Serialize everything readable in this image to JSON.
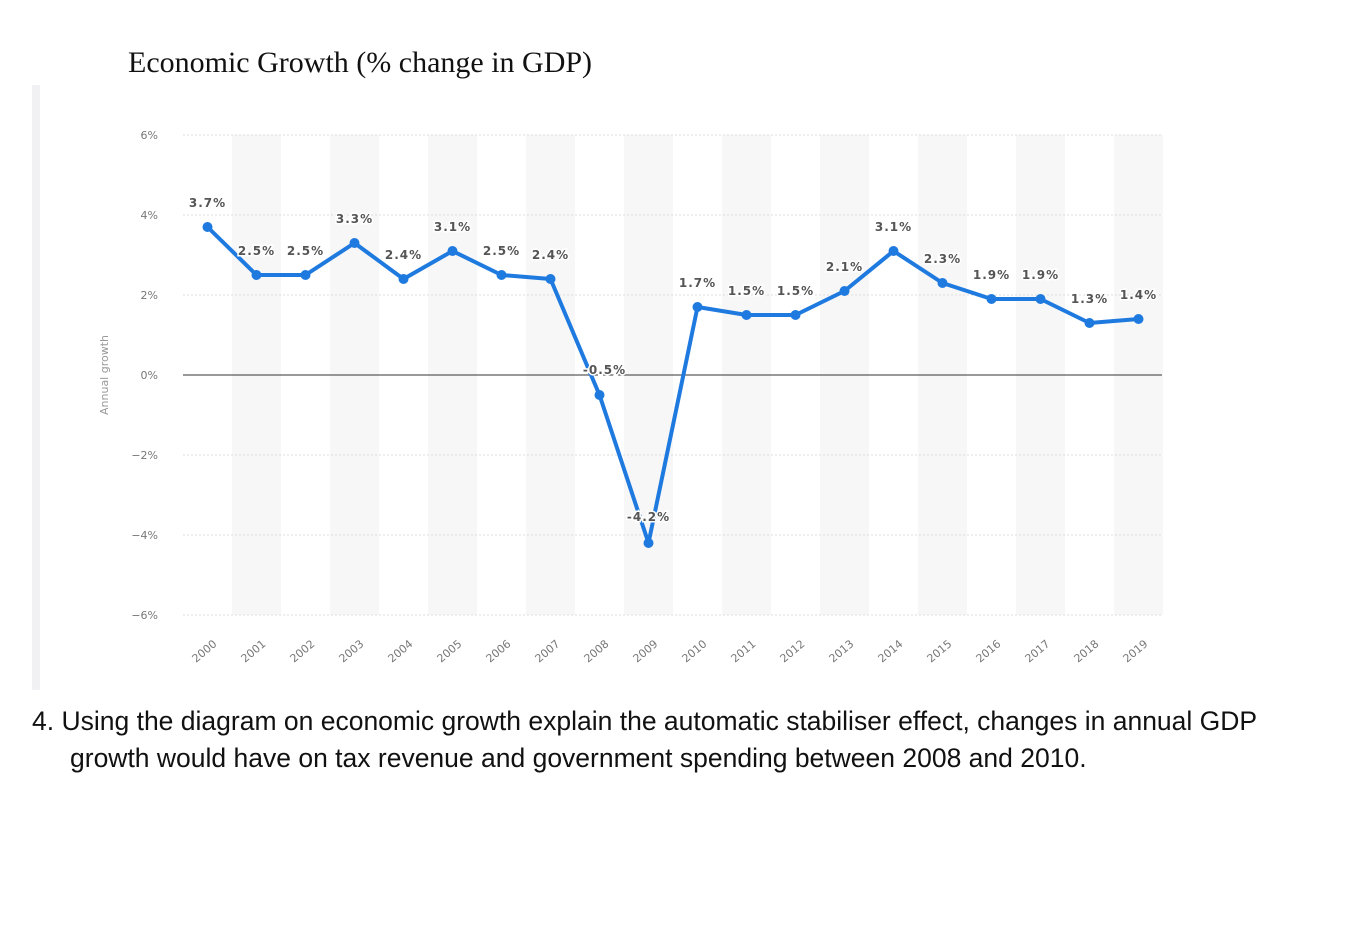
{
  "title": "Economic Growth (% change in GDP)",
  "question": "4. Using the diagram on economic growth explain the automatic stabiliser effect, changes in annual GDP growth would have on tax revenue and government spending between 2008 and 2010.",
  "chart_data": {
    "type": "line",
    "title": "Economic Growth (% change in GDP)",
    "xlabel": "",
    "ylabel": "Annual growth",
    "categories": [
      "2000",
      "2001",
      "2002",
      "2003",
      "2004",
      "2005",
      "2006",
      "2007",
      "2008",
      "2009",
      "2010",
      "2011",
      "2012",
      "2013",
      "2014",
      "2015",
      "2016",
      "2017",
      "2018",
      "2019"
    ],
    "values": [
      3.7,
      2.5,
      2.5,
      3.3,
      2.4,
      3.1,
      2.5,
      2.4,
      -0.5,
      -4.2,
      1.7,
      1.5,
      1.5,
      2.1,
      3.1,
      2.3,
      1.9,
      1.9,
      1.3,
      1.4
    ],
    "data_labels": [
      "3.7%",
      "2.5%",
      "2.5%",
      "3.3%",
      "2.4%",
      "3.1%",
      "2.5%",
      "2.4%",
      "-0.5%",
      "-4.2%",
      "1.7%",
      "1.5%",
      "1.5%",
      "2.1%",
      "3.1%",
      "2.3%",
      "1.9%",
      "1.9%",
      "1.3%",
      "1.4%"
    ],
    "yticks": [
      6,
      4,
      2,
      0,
      -2,
      -4,
      -6
    ],
    "ytick_labels": [
      "6%",
      "4%",
      "2%",
      "0%",
      "-2%",
      "-4%",
      "-6%"
    ],
    "ylim": [
      -6,
      6
    ],
    "grid": true,
    "line_color": "#1f7ae0"
  }
}
